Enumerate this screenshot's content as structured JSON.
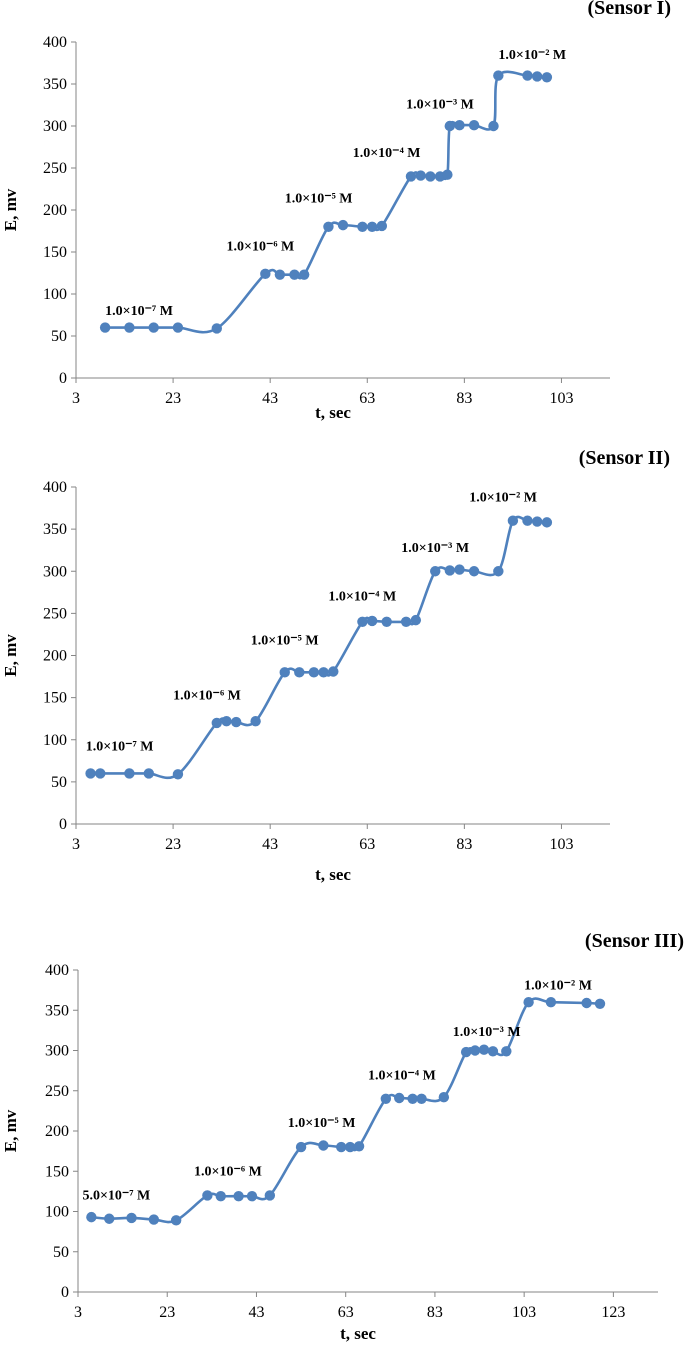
{
  "chart_data": [
    {
      "type": "line",
      "title": "(Sensor I)",
      "xlabel": "t, sec",
      "ylabel": "E, mv",
      "xlim": [
        3,
        113
      ],
      "ylim": [
        0,
        400
      ],
      "x_ticks": [
        3,
        23,
        43,
        63,
        83,
        103
      ],
      "y_ticks": [
        0,
        50,
        100,
        150,
        200,
        250,
        300,
        350,
        400
      ],
      "color": "#4f81bd",
      "grid": false,
      "series": [
        {
          "x": [
            9,
            14,
            19,
            24,
            32,
            42,
            45,
            48,
            50,
            55,
            58,
            62,
            64,
            66,
            72,
            74,
            76,
            78,
            79.5,
            80,
            82,
            85,
            89,
            90,
            96,
            98,
            100
          ],
          "y": [
            60,
            60,
            60,
            60,
            59,
            124,
            123,
            123,
            123,
            180,
            182,
            180,
            180,
            181,
            240,
            241,
            240,
            240,
            242,
            300,
            301,
            301,
            300,
            360,
            360,
            359,
            358
          ]
        }
      ],
      "annotations": [
        {
          "text": "1.0×10⁻⁷ M",
          "x": 9,
          "y": 75
        },
        {
          "text": "1.0×10⁻⁶ M",
          "x": 34,
          "y": 152
        },
        {
          "text": "1.0×10⁻⁵ M",
          "x": 46,
          "y": 209
        },
        {
          "text": "1.0×10⁻⁴ M",
          "x": 60,
          "y": 263
        },
        {
          "text": "1.0×10⁻³ M",
          "x": 71,
          "y": 321
        },
        {
          "text": "1.0×10⁻² M",
          "x": 90,
          "y": 380
        }
      ]
    },
    {
      "type": "line",
      "title": "(Sensor II)",
      "xlabel": "t, sec",
      "ylabel": "E, mv",
      "xlim": [
        3,
        113
      ],
      "ylim": [
        0,
        400
      ],
      "x_ticks": [
        3,
        23,
        43,
        63,
        83,
        103
      ],
      "y_ticks": [
        0,
        50,
        100,
        150,
        200,
        250,
        300,
        350,
        400
      ],
      "color": "#4f81bd",
      "grid": false,
      "series": [
        {
          "x": [
            6,
            8,
            14,
            18,
            24,
            32,
            34,
            36,
            40,
            46,
            49,
            52,
            54,
            56,
            62,
            64,
            67,
            71,
            73,
            77,
            80,
            82,
            85,
            90,
            93,
            96,
            98,
            100
          ],
          "y": [
            60,
            60,
            60,
            60,
            59,
            120,
            122,
            121,
            122,
            180,
            180,
            180,
            180,
            181,
            240,
            241,
            240,
            240,
            242,
            300,
            301,
            302,
            300,
            300,
            360,
            360,
            359,
            358
          ]
        }
      ],
      "annotations": [
        {
          "text": "1.0×10⁻⁷ M",
          "x": 5,
          "y": 87
        },
        {
          "text": "1.0×10⁻⁶ M",
          "x": 23,
          "y": 148
        },
        {
          "text": "1.0×10⁻⁵ M",
          "x": 39,
          "y": 213
        },
        {
          "text": "1.0×10⁻⁴ M",
          "x": 55,
          "y": 265
        },
        {
          "text": "1.0×10⁻³ M",
          "x": 70,
          "y": 323
        },
        {
          "text": "1.0×10⁻² M",
          "x": 84,
          "y": 383
        }
      ]
    },
    {
      "type": "line",
      "title": "(Sensor III)",
      "xlabel": "t, sec",
      "ylabel": "E, mv",
      "xlim": [
        3,
        133
      ],
      "ylim": [
        0,
        400
      ],
      "x_ticks": [
        3,
        23,
        43,
        63,
        83,
        103,
        123
      ],
      "y_ticks": [
        0,
        50,
        100,
        150,
        200,
        250,
        300,
        350,
        400
      ],
      "color": "#4f81bd",
      "grid": false,
      "series": [
        {
          "x": [
            6,
            10,
            15,
            20,
            25,
            32,
            35,
            39,
            42,
            46,
            53,
            58,
            62,
            64,
            66,
            72,
            75,
            78,
            80,
            85,
            90,
            92,
            94,
            96,
            99,
            104,
            109,
            117,
            120
          ],
          "y": [
            93,
            91,
            92,
            90,
            89,
            120,
            119,
            119,
            119,
            120,
            180,
            182,
            180,
            180,
            181,
            240,
            241,
            240,
            240,
            242,
            298,
            300,
            301,
            299,
            299,
            360,
            360,
            359,
            358
          ]
        }
      ],
      "annotations": [
        {
          "text": "5.0×10⁻⁷ M",
          "x": 4,
          "y": 115
        },
        {
          "text": "1.0×10⁻⁶ M",
          "x": 29,
          "y": 145
        },
        {
          "text": "1.0×10⁻⁵ M",
          "x": 50,
          "y": 205
        },
        {
          "text": "1.0×10⁻⁴ M",
          "x": 68,
          "y": 264
        },
        {
          "text": "1.0×10⁻³ M",
          "x": 87,
          "y": 318
        },
        {
          "text": "1.0×10⁻² M",
          "x": 103,
          "y": 376
        }
      ]
    }
  ]
}
